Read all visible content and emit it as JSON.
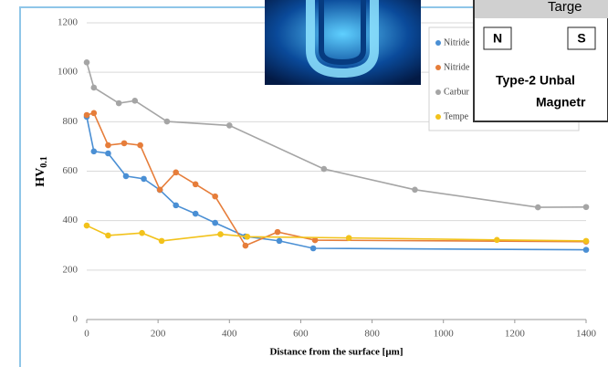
{
  "chart_data": {
    "type": "line",
    "x_label": "Distance from the surface [µm]",
    "y_label": "HV",
    "y_label_subscript": "0.1",
    "xlim": [
      0,
      1400
    ],
    "xticks": [
      0,
      200,
      400,
      600,
      800,
      1000,
      1200,
      1400
    ],
    "ylim": [
      0,
      1200
    ],
    "yticks": [
      0,
      200,
      400,
      600,
      800,
      1000,
      1200
    ],
    "series": [
      {
        "name": "Nitride",
        "color": "#4a8fd4",
        "x": [
          0,
          20,
          60,
          110,
          160,
          205,
          250,
          305,
          360,
          445,
          540,
          635,
          1400
        ],
        "values": [
          820,
          680,
          672,
          580,
          569,
          524,
          462,
          428,
          391,
          336,
          318,
          288,
          282
        ]
      },
      {
        "name": "Nitride",
        "color": "#e67d3a",
        "x": [
          0,
          20,
          60,
          105,
          150,
          205,
          250,
          305,
          360,
          445,
          535,
          640,
          1400
        ],
        "values": [
          827,
          835,
          705,
          713,
          705,
          525,
          595,
          547,
          498,
          299,
          354,
          321,
          315
        ]
      },
      {
        "name": "Carbur",
        "color": "#a5a5a5",
        "x": [
          0,
          20,
          90,
          135,
          225,
          400,
          665,
          920,
          1265,
          1400
        ],
        "values": [
          1040,
          938,
          875,
          885,
          801,
          785,
          609,
          525,
          454,
          455
        ]
      },
      {
        "name": "Tempe",
        "color": "#f2c21b",
        "x": [
          0,
          60,
          155,
          210,
          375,
          450,
          735,
          1150,
          1400
        ],
        "values": [
          380,
          340,
          350,
          318,
          345,
          335,
          330,
          322,
          318
        ]
      }
    ]
  },
  "overlay": {
    "target": "Targe",
    "north": "N",
    "south": "S",
    "line1": "Type-2 Unbal",
    "line2": "Magnetr"
  }
}
